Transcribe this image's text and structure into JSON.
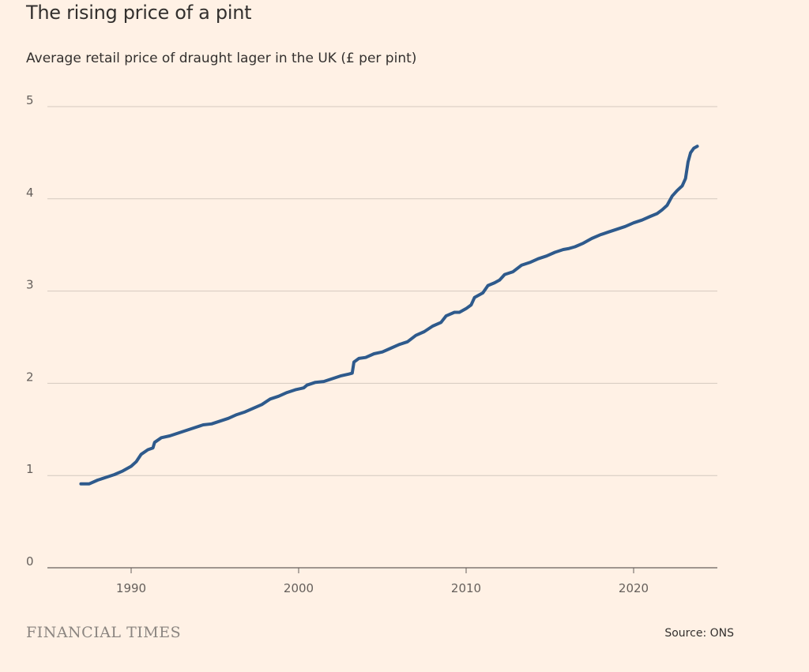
{
  "chart_data": {
    "type": "line",
    "title": "The rising price of a pint",
    "subtitle": "Average retail price of draught lager in the UK (£ per pint)",
    "xlabel": "",
    "ylabel": "",
    "xlim": [
      1985,
      2025
    ],
    "ylim": [
      0,
      5
    ],
    "x_ticks": [
      1990,
      2000,
      2010,
      2020
    ],
    "y_ticks": [
      0,
      1,
      2,
      3,
      4,
      5
    ],
    "grid": true,
    "series": [
      {
        "color": "#2e5a8c",
        "points": [
          [
            1987.0,
            0.91
          ],
          [
            1987.5,
            0.91
          ],
          [
            1988.0,
            0.95
          ],
          [
            1988.5,
            0.98
          ],
          [
            1989.0,
            1.01
          ],
          [
            1989.5,
            1.05
          ],
          [
            1990.0,
            1.1
          ],
          [
            1990.3,
            1.15
          ],
          [
            1990.6,
            1.23
          ],
          [
            1991.0,
            1.28
          ],
          [
            1991.3,
            1.3
          ],
          [
            1991.4,
            1.36
          ],
          [
            1991.8,
            1.41
          ],
          [
            1992.3,
            1.43
          ],
          [
            1992.8,
            1.46
          ],
          [
            1993.3,
            1.49
          ],
          [
            1993.8,
            1.52
          ],
          [
            1994.3,
            1.55
          ],
          [
            1994.8,
            1.56
          ],
          [
            1995.3,
            1.59
          ],
          [
            1995.8,
            1.62
          ],
          [
            1996.3,
            1.66
          ],
          [
            1996.8,
            1.69
          ],
          [
            1997.3,
            1.73
          ],
          [
            1997.8,
            1.77
          ],
          [
            1998.3,
            1.83
          ],
          [
            1998.8,
            1.86
          ],
          [
            1999.3,
            1.9
          ],
          [
            1999.8,
            1.93
          ],
          [
            2000.3,
            1.95
          ],
          [
            2000.5,
            1.98
          ],
          [
            2001.0,
            2.01
          ],
          [
            2001.5,
            2.02
          ],
          [
            2002.0,
            2.05
          ],
          [
            2002.5,
            2.08
          ],
          [
            2003.0,
            2.1
          ],
          [
            2003.2,
            2.11
          ],
          [
            2003.3,
            2.23
          ],
          [
            2003.6,
            2.27
          ],
          [
            2004.0,
            2.28
          ],
          [
            2004.5,
            2.32
          ],
          [
            2005.0,
            2.34
          ],
          [
            2005.5,
            2.38
          ],
          [
            2006.0,
            2.42
          ],
          [
            2006.5,
            2.45
          ],
          [
            2007.0,
            2.52
          ],
          [
            2007.5,
            2.56
          ],
          [
            2008.0,
            2.62
          ],
          [
            2008.5,
            2.66
          ],
          [
            2008.8,
            2.73
          ],
          [
            2009.3,
            2.77
          ],
          [
            2009.6,
            2.77
          ],
          [
            2010.0,
            2.81
          ],
          [
            2010.3,
            2.85
          ],
          [
            2010.5,
            2.93
          ],
          [
            2011.0,
            2.98
          ],
          [
            2011.3,
            3.06
          ],
          [
            2011.7,
            3.09
          ],
          [
            2012.0,
            3.12
          ],
          [
            2012.3,
            3.18
          ],
          [
            2012.8,
            3.21
          ],
          [
            2013.3,
            3.28
          ],
          [
            2013.8,
            3.31
          ],
          [
            2014.3,
            3.35
          ],
          [
            2014.8,
            3.38
          ],
          [
            2015.3,
            3.42
          ],
          [
            2015.8,
            3.45
          ],
          [
            2016.1,
            3.46
          ],
          [
            2016.5,
            3.48
          ],
          [
            2017.0,
            3.52
          ],
          [
            2017.5,
            3.57
          ],
          [
            2018.0,
            3.61
          ],
          [
            2018.5,
            3.64
          ],
          [
            2019.0,
            3.67
          ],
          [
            2019.5,
            3.7
          ],
          [
            2020.0,
            3.74
          ],
          [
            2020.5,
            3.77
          ],
          [
            2021.0,
            3.81
          ],
          [
            2021.4,
            3.84
          ],
          [
            2021.7,
            3.88
          ],
          [
            2022.0,
            3.93
          ],
          [
            2022.3,
            4.03
          ],
          [
            2022.6,
            4.09
          ],
          [
            2022.9,
            4.14
          ],
          [
            2023.1,
            4.22
          ],
          [
            2023.25,
            4.4
          ],
          [
            2023.4,
            4.5
          ],
          [
            2023.6,
            4.55
          ],
          [
            2023.8,
            4.57
          ]
        ]
      }
    ]
  },
  "footer": {
    "brand": "FINANCIAL TIMES",
    "source": "Source: ONS"
  }
}
